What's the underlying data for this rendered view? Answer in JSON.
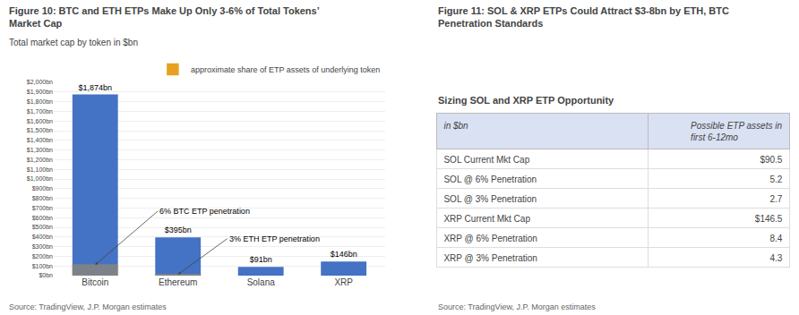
{
  "chart_data": [
    {
      "type": "bar",
      "title": "Figure 10: BTC and ETH ETPs Make Up Only 3-6% of Total Tokens’\nMarket Cap",
      "subtitle": "Total market cap by token in $bn",
      "categories": [
        "Bitcoin",
        "Ethereum",
        "Solana",
        "XRP"
      ],
      "series": [
        {
          "values": [
            1874,
            395,
            91,
            146
          ],
          "value_labels": [
            "$1,874bn",
            "$395bn",
            "$91bn",
            "$146bn"
          ],
          "color": "#4472C4"
        },
        {
          "name": "approximate share of ETP assets of underlying token",
          "values": [
            112,
            12,
            null,
            null
          ],
          "color": "#E8A020"
        }
      ],
      "annotations": [
        {
          "text": "6% BTC ETP penetration",
          "category": "Bitcoin",
          "value": 112
        },
        {
          "text": "3% ETH ETP penetration",
          "category": "Ethereum",
          "value": 12
        }
      ],
      "ylim": [
        0,
        2000
      ],
      "yticks": [
        {
          "value": 0,
          "label": "$0bn"
        },
        {
          "value": 100,
          "label": "$100bn"
        },
        {
          "value": 200,
          "label": "$200bn"
        },
        {
          "value": 300,
          "label": "$300bn"
        },
        {
          "value": 400,
          "label": "$400bn"
        },
        {
          "value": 500,
          "label": "$500bn"
        },
        {
          "value": 600,
          "label": "$600bn"
        },
        {
          "value": 700,
          "label": "$700bn"
        },
        {
          "value": 800,
          "label": "$800bn"
        },
        {
          "value": 900,
          "label": "$900bn"
        },
        {
          "value": 1000,
          "label": "$1,000bn"
        },
        {
          "value": 1100,
          "label": "$1,100bn"
        },
        {
          "value": 1200,
          "label": "$1,200bn"
        },
        {
          "value": 1300,
          "label": "$1,300bn"
        },
        {
          "value": 1400,
          "label": "$1,400bn"
        },
        {
          "value": 1500,
          "label": "$1,500bn"
        },
        {
          "value": 1600,
          "label": "$1,600bn"
        },
        {
          "value": 1700,
          "label": "$1,700bn"
        },
        {
          "value": 1800,
          "label": "$1,800bn"
        },
        {
          "value": 1900,
          "label": "$1,900bn"
        },
        {
          "value": 2000,
          "label": "$2,000bn"
        }
      ],
      "grid": true,
      "legend": "upper right",
      "data_labels": true,
      "source": "Source: TradingView, J.P. Morgan estimates"
    },
    {
      "type": "table",
      "title": "Figure 11: SOL & XRP ETPs Could Attract $3-8bn by ETH, BTC\nPenetration Standards",
      "subtitle": "Sizing SOL and XRP ETP Opportunity",
      "columns": [
        "in $bn",
        "Possible ETP assets in\nfirst 6-12mo"
      ],
      "categories": [
        "SOL Current Mkt Cap",
        "SOL @ 6% Penetration",
        "SOL @ 3% Penetration",
        "XRP Current Mkt Cap",
        "XRP @ 6% Penetration",
        "XRP @ 3% Penetration"
      ],
      "values": [
        90.5,
        5.2,
        2.7,
        146.5,
        8.4,
        4.3
      ],
      "value_labels": [
        "$90.5",
        "5.2",
        "2.7",
        "$146.5",
        "8.4",
        "4.3"
      ],
      "color": "#D9E1F2",
      "source": "Source: TradingView, J.P. Morgan estimates"
    }
  ]
}
